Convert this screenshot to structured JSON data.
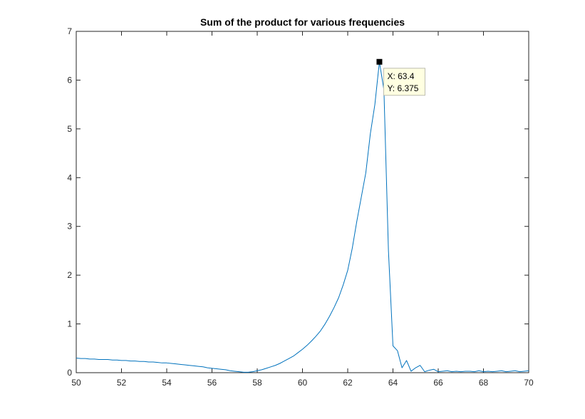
{
  "chart_data": {
    "type": "line",
    "title": "Sum of the product for various frequencies",
    "xlabel": "",
    "ylabel": "",
    "xlim": [
      50,
      70
    ],
    "ylim": [
      0,
      7
    ],
    "grid": false,
    "x_ticks": [
      "50",
      "52",
      "54",
      "56",
      "58",
      "60",
      "62",
      "64",
      "66",
      "68",
      "70"
    ],
    "y_ticks": [
      "0",
      "1",
      "2",
      "3",
      "4",
      "5",
      "6",
      "7"
    ],
    "series": [
      {
        "color": "#0072BD",
        "x": [
          50.0,
          50.2,
          50.4,
          50.6,
          50.8,
          51.0,
          51.2,
          51.4,
          51.6,
          51.8,
          52.0,
          52.2,
          52.4,
          52.6,
          52.8,
          53.0,
          53.2,
          53.4,
          53.6,
          53.8,
          54.0,
          54.2,
          54.4,
          54.6,
          54.8,
          55.0,
          55.2,
          55.4,
          55.6,
          55.8,
          56.0,
          56.2,
          56.4,
          56.6,
          56.8,
          57.0,
          57.2,
          57.4,
          57.6,
          57.8,
          58.0,
          58.2,
          58.4,
          58.6,
          58.8,
          59.0,
          59.2,
          59.4,
          59.6,
          59.8,
          60.0,
          60.2,
          60.4,
          60.6,
          60.8,
          61.0,
          61.2,
          61.4,
          61.6,
          61.8,
          62.0,
          62.2,
          62.4,
          62.6,
          62.8,
          63.0,
          63.2,
          63.4,
          63.6,
          63.8,
          64.0,
          64.2,
          64.4,
          64.6,
          64.8,
          65.0,
          65.2,
          65.4,
          65.6,
          65.8,
          66.0,
          66.2,
          66.4,
          66.6,
          66.8,
          67.0,
          67.2,
          67.4,
          67.6,
          67.8,
          68.0,
          68.2,
          68.4,
          68.6,
          68.8,
          69.0,
          69.2,
          69.4,
          69.6,
          69.8,
          70.0
        ],
        "y": [
          0.3,
          0.29,
          0.29,
          0.28,
          0.28,
          0.27,
          0.27,
          0.27,
          0.26,
          0.26,
          0.25,
          0.25,
          0.24,
          0.24,
          0.23,
          0.23,
          0.22,
          0.22,
          0.21,
          0.2,
          0.2,
          0.19,
          0.18,
          0.17,
          0.16,
          0.15,
          0.14,
          0.13,
          0.12,
          0.1,
          0.09,
          0.08,
          0.07,
          0.06,
          0.04,
          0.03,
          0.02,
          0.01,
          0.01,
          0.02,
          0.04,
          0.06,
          0.09,
          0.12,
          0.15,
          0.19,
          0.24,
          0.29,
          0.34,
          0.41,
          0.48,
          0.56,
          0.65,
          0.75,
          0.86,
          1.0,
          1.16,
          1.34,
          1.54,
          1.8,
          2.1,
          2.55,
          3.1,
          3.6,
          4.1,
          4.9,
          5.5,
          6.375,
          5.8,
          2.5,
          0.55,
          0.45,
          0.1,
          0.25,
          0.03,
          0.1,
          0.15,
          0.02,
          0.05,
          0.07,
          0.02,
          0.03,
          0.04,
          0.02,
          0.03,
          0.02,
          0.03,
          0.03,
          0.02,
          0.04,
          0.02,
          0.03,
          0.02,
          0.03,
          0.04,
          0.02,
          0.03,
          0.04,
          0.02,
          0.03,
          0.04
        ]
      }
    ],
    "datatip": {
      "x_value": 63.4,
      "y_value": 6.375,
      "x_text": "X: 63.4",
      "y_text": "Y: 6.375"
    }
  }
}
